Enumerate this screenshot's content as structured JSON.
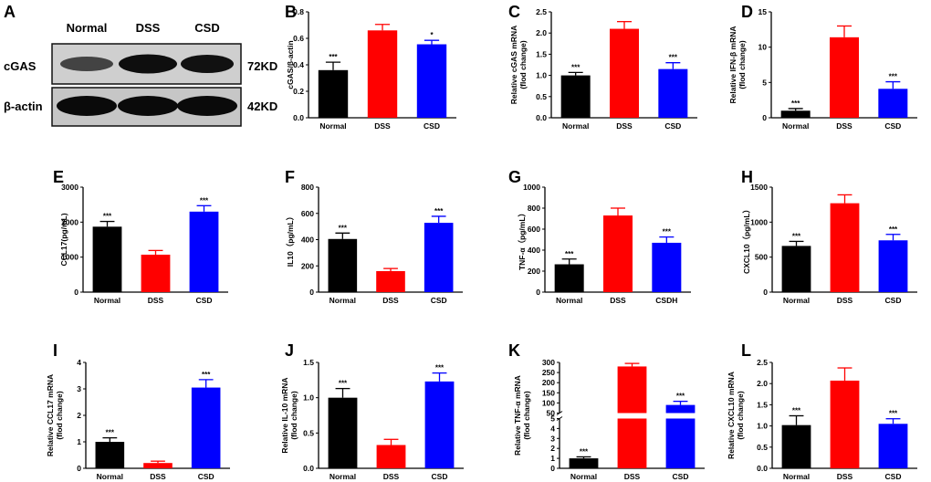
{
  "figure": {
    "panel_a": {
      "letter": "A",
      "lanes": [
        "Normal",
        "DSS",
        "CSD"
      ],
      "rows": [
        {
          "label": "cGAS",
          "size": "72KD"
        },
        {
          "label": "β-actin",
          "size": "42KD"
        }
      ]
    }
  },
  "colors": {
    "Normal": "#000000",
    "DSS": "#ff0000",
    "CSD": "#0000ff",
    "CSDH": "#0000ff"
  },
  "chart_data": [
    {
      "id": "B",
      "type": "bar",
      "title": "",
      "ylabel": "cGAS/β-actin",
      "xlabel": "",
      "categories": [
        "Normal",
        "DSS",
        "CSD"
      ],
      "values": [
        0.36,
        0.66,
        0.555
      ],
      "errors": [
        0.06,
        0.045,
        0.03
      ],
      "significance": [
        "***",
        "",
        "*"
      ],
      "ylim": [
        0,
        0.8
      ],
      "yticks": [
        "0.0",
        "0.2",
        "0.4",
        "0.6",
        "0.8"
      ]
    },
    {
      "id": "C",
      "type": "bar",
      "title": "",
      "ylabel": [
        "Relative cGAS mRNA",
        "(flod change)"
      ],
      "xlabel": "",
      "categories": [
        "Normal",
        "DSS",
        "CSD"
      ],
      "values": [
        1.0,
        2.1,
        1.15
      ],
      "errors": [
        0.07,
        0.17,
        0.15
      ],
      "significance": [
        "***",
        "",
        "***"
      ],
      "ylim": [
        0,
        2.5
      ],
      "yticks": [
        "0.0",
        "0.5",
        "1.0",
        "1.5",
        "2.0",
        "2.5"
      ]
    },
    {
      "id": "D",
      "type": "bar",
      "title": "",
      "ylabel": [
        "Relative IFN-β mRNA",
        "(flod change)"
      ],
      "xlabel": "",
      "categories": [
        "Normal",
        "DSS",
        "CSD"
      ],
      "values": [
        1.0,
        11.4,
        4.1
      ],
      "errors": [
        0.3,
        1.6,
        1.0
      ],
      "significance": [
        "***",
        "",
        "***"
      ],
      "ylim": [
        0,
        15
      ],
      "yticks": [
        "0",
        "5",
        "10",
        "15"
      ]
    },
    {
      "id": "E",
      "type": "bar",
      "title": "",
      "ylabel": "CCL17(pg/mL)",
      "xlabel": "",
      "categories": [
        "Normal",
        "DSS",
        "CSD"
      ],
      "values": [
        1870,
        1070,
        2300
      ],
      "errors": [
        150,
        120,
        170
      ],
      "significance": [
        "***",
        "",
        "***"
      ],
      "ylim": [
        0,
        3000
      ],
      "yticks": [
        "0",
        "1000",
        "2000",
        "3000"
      ]
    },
    {
      "id": "F",
      "type": "bar",
      "title": "",
      "ylabel": "IL10（pg/mL）",
      "xlabel": "",
      "categories": [
        "Normal",
        "DSS",
        "CSD"
      ],
      "values": [
        405,
        160,
        528
      ],
      "errors": [
        45,
        20,
        50
      ],
      "significance": [
        "***",
        "",
        "***"
      ],
      "ylim": [
        0,
        800
      ],
      "yticks": [
        "0",
        "200",
        "400",
        "600",
        "800"
      ]
    },
    {
      "id": "G",
      "type": "bar",
      "title": "",
      "ylabel": "TNF-α（pg/mL）",
      "xlabel": "",
      "categories": [
        "Normal",
        "DSS",
        "CSDH"
      ],
      "values": [
        265,
        730,
        470
      ],
      "errors": [
        50,
        70,
        55
      ],
      "significance": [
        "***",
        "",
        "***"
      ],
      "ylim": [
        0,
        1000
      ],
      "yticks": [
        "0",
        "200",
        "400",
        "600",
        "800",
        "1000"
      ]
    },
    {
      "id": "H",
      "type": "bar",
      "title": "",
      "ylabel": "CXCL10（pg/mL）",
      "xlabel": "",
      "categories": [
        "Normal",
        "DSS",
        "CSD"
      ],
      "values": [
        660,
        1270,
        740
      ],
      "errors": [
        65,
        120,
        85
      ],
      "significance": [
        "***",
        "",
        "***"
      ],
      "ylim": [
        0,
        1500
      ],
      "yticks": [
        "0",
        "500",
        "1000",
        "1500"
      ]
    },
    {
      "id": "I",
      "type": "bar",
      "title": "",
      "ylabel": [
        "Relative CCL17 mRNA",
        "(flod change)"
      ],
      "xlabel": "",
      "categories": [
        "Normal",
        "DSS",
        "CSD"
      ],
      "values": [
        1.0,
        0.2,
        3.05
      ],
      "errors": [
        0.15,
        0.07,
        0.3
      ],
      "significance": [
        "***",
        "",
        "***"
      ],
      "ylim": [
        0,
        4
      ],
      "yticks": [
        "0",
        "1",
        "2",
        "3",
        "4"
      ]
    },
    {
      "id": "J",
      "type": "bar",
      "title": "",
      "ylabel": [
        "Relative IL-10 mRNA",
        "(flod change)"
      ],
      "xlabel": "",
      "categories": [
        "Normal",
        "DSS",
        "CSD"
      ],
      "values": [
        1.0,
        0.33,
        1.23
      ],
      "errors": [
        0.13,
        0.08,
        0.12
      ],
      "significance": [
        "***",
        "",
        "***"
      ],
      "ylim": [
        0,
        1.5
      ],
      "yticks": [
        "0.0",
        "0.5",
        "1.0",
        "1.5"
      ]
    },
    {
      "id": "K",
      "type": "bar",
      "broken_axis": true,
      "title": "",
      "ylabel": [
        "Relative TNF-α mRNA",
        "(flod change)"
      ],
      "xlabel": "",
      "categories": [
        "Normal",
        "DSS",
        "CSD"
      ],
      "values": [
        1.0,
        280,
        90
      ],
      "errors": [
        0.15,
        15,
        18
      ],
      "significance": [
        "***",
        "",
        "***"
      ],
      "ylim_lower": [
        0,
        5
      ],
      "ylim_upper": [
        50,
        300
      ],
      "yticks_lower": [
        "0",
        "1",
        "2",
        "3",
        "4",
        "5"
      ],
      "yticks_upper": [
        "50",
        "100",
        "150",
        "200",
        "250",
        "300"
      ]
    },
    {
      "id": "L",
      "type": "bar",
      "title": "",
      "ylabel": [
        "Relative CXCL10 mRNA",
        "(flod change)"
      ],
      "xlabel": "",
      "categories": [
        "Normal",
        "DSS",
        "CSD"
      ],
      "values": [
        1.02,
        2.07,
        1.05
      ],
      "errors": [
        0.22,
        0.3,
        0.12
      ],
      "significance": [
        "***",
        "",
        "***"
      ],
      "ylim": [
        0,
        2.5
      ],
      "yticks": [
        "0.0",
        "0.5",
        "1.0",
        "1.5",
        "2.0",
        "2.5"
      ]
    }
  ]
}
